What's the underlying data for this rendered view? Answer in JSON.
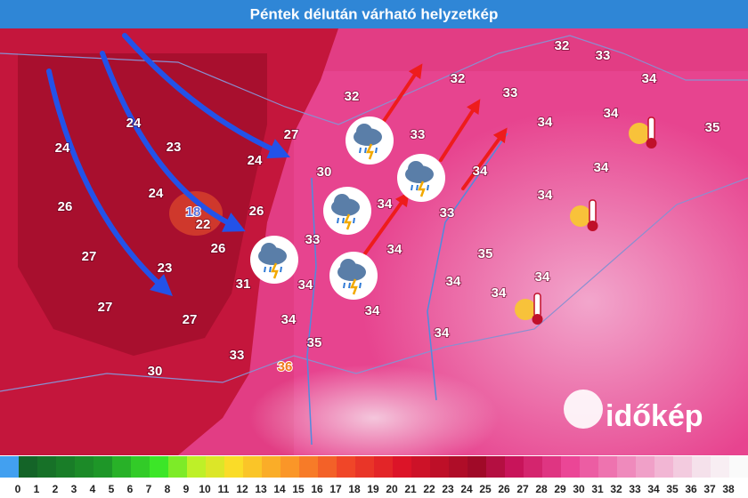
{
  "header": {
    "title": "Péntek délután várható helyzetkép"
  },
  "temperatures": [
    {
      "value": 32
    },
    {
      "value": 33
    },
    {
      "value": 32
    },
    {
      "value": 33
    },
    {
      "value": 32
    },
    {
      "value": 34
    },
    {
      "value": 34
    },
    {
      "value": 35
    },
    {
      "value": 34
    },
    {
      "value": 33
    },
    {
      "value": 27
    },
    {
      "value": 24
    },
    {
      "value": 23
    },
    {
      "value": 24
    },
    {
      "value": 24
    },
    {
      "value": 30
    },
    {
      "value": 34
    },
    {
      "value": 34
    },
    {
      "value": 24
    },
    {
      "value": 34
    },
    {
      "value": 34
    },
    {
      "value": 33
    },
    {
      "value": 26
    },
    {
      "value": 18,
      "color": "#5b6fd8"
    },
    {
      "value": 22
    },
    {
      "value": 26
    },
    {
      "value": 33
    },
    {
      "value": 26
    },
    {
      "value": 27
    },
    {
      "value": 35
    },
    {
      "value": 34
    },
    {
      "value": 23
    },
    {
      "value": 34
    },
    {
      "value": 31
    },
    {
      "value": 34
    },
    {
      "value": 34
    },
    {
      "value": 34
    },
    {
      "value": 27
    },
    {
      "value": 27
    },
    {
      "value": 34
    },
    {
      "value": 34
    },
    {
      "value": 35
    },
    {
      "value": 34
    },
    {
      "value": 33
    },
    {
      "value": 36,
      "color": "#f07a1a"
    },
    {
      "value": 30
    }
  ],
  "logo": "időkép",
  "legend": {
    "ticks": [
      0,
      1,
      2,
      3,
      4,
      5,
      6,
      7,
      8,
      9,
      10,
      11,
      12,
      13,
      14,
      15,
      16,
      17,
      18,
      19,
      20,
      21,
      22,
      23,
      24,
      25,
      26,
      27,
      28,
      29,
      30,
      31,
      32,
      33,
      34,
      35,
      36,
      37,
      38
    ]
  }
}
